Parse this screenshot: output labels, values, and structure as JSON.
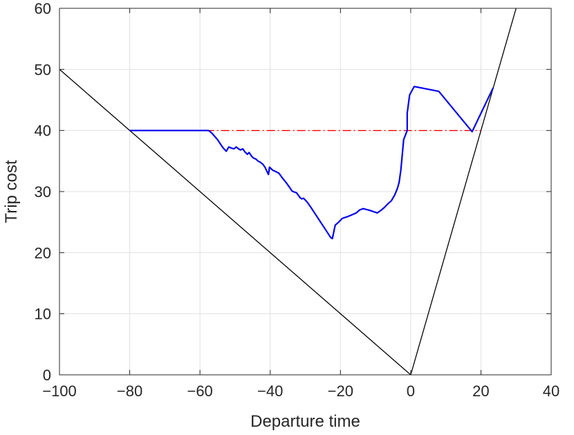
{
  "chart_data": {
    "type": "line",
    "title": "",
    "xlabel": "Departure time",
    "ylabel": "Trip cost",
    "xlim": [
      -100,
      40
    ],
    "ylim": [
      0,
      60
    ],
    "xticks": [
      -100,
      -80,
      -60,
      -40,
      -20,
      0,
      20,
      40
    ],
    "yticks": [
      0,
      10,
      20,
      30,
      40,
      50,
      60
    ],
    "xtick_labels": [
      "−100",
      "−80",
      "−60",
      "−40",
      "−20",
      "0",
      "20",
      "40"
    ],
    "ytick_labels": [
      "0",
      "10",
      "20",
      "30",
      "40",
      "50",
      "60"
    ],
    "grid": true,
    "series": [
      {
        "color": "#000000",
        "style": "solid",
        "x": [
          -100,
          0,
          30.5
        ],
        "y": [
          50,
          0,
          61
        ]
      },
      {
        "color": "#ff0000",
        "style": "dashdot",
        "x": [
          -80,
          20
        ],
        "y": [
          40,
          40
        ]
      },
      {
        "color": "#0000ee",
        "style": "solid",
        "x": [
          -80,
          -57.5,
          -56.5,
          -55,
          -53.5,
          -52.5,
          -51.8,
          -51,
          -50.3,
          -49.7,
          -49,
          -48.5,
          -47.8,
          -47.2,
          -46.5,
          -46,
          -45.3,
          -44.8,
          -44,
          -43.5,
          -42.8,
          -42,
          -41.5,
          -41,
          -40.5,
          -40.2,
          -39.3,
          -38.5,
          -37.5,
          -36.5,
          -35.5,
          -34.5,
          -33.8,
          -33.5,
          -32.5,
          -31.5,
          -31,
          -30.5,
          -29.5,
          -28.5,
          -22.8,
          -22.3,
          -21.5,
          -20.5,
          -19.5,
          -17.5,
          -15.5,
          -14.5,
          -13.5,
          -11.5,
          -9.5,
          -8.3,
          -7.5,
          -6.5,
          -5.5,
          -4.5,
          -3.8,
          -3.3,
          -2.8,
          -2,
          -1,
          -1,
          -0.3,
          1,
          8,
          17.5,
          23.5
        ],
        "y": [
          40,
          40,
          39.5,
          38.5,
          37.2,
          36.6,
          37.3,
          37.1,
          37.0,
          37.3,
          37.0,
          36.8,
          37.0,
          36.5,
          36.1,
          36.4,
          35.8,
          35.5,
          35.3,
          35.0,
          34.8,
          34.4,
          34.0,
          33.4,
          32.8,
          34.0,
          33.5,
          33.3,
          33.0,
          32.2,
          31.5,
          30.7,
          30.1,
          30.0,
          29.8,
          29.0,
          28.8,
          28.9,
          28.3,
          27.5,
          22.5,
          22.3,
          24.5,
          25.0,
          25.6,
          26.0,
          26.5,
          27.0,
          27.2,
          26.9,
          26.5,
          27.0,
          27.4,
          28.0,
          28.5,
          29.5,
          30.5,
          31.5,
          33.5,
          38.5,
          40,
          42.8,
          45.8,
          47.2,
          46.4,
          39.8,
          47
        ]
      }
    ]
  }
}
